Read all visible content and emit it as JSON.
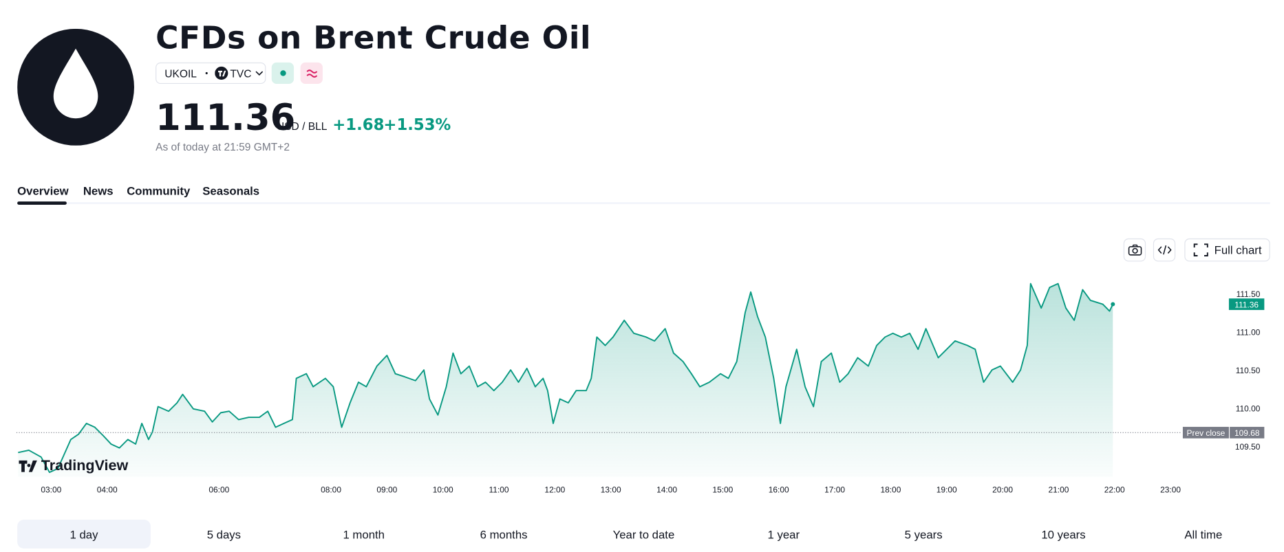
{
  "header": {
    "title": "CFDs on Brent Crude Oil",
    "symbol": "UKOIL",
    "exchange": "TVC",
    "price": "111.36",
    "unit": "USD / BLL",
    "change": "+1.68",
    "change_pct": "+1.53%",
    "as_of": "As of today at 21:59 GMT+2"
  },
  "tabs": [
    "Overview",
    "News",
    "Community",
    "Seasonals"
  ],
  "toolbar": {
    "full_chart": "Full chart"
  },
  "watermark": "TradingView",
  "ranges": [
    "1 day",
    "5 days",
    "1 month",
    "6 months",
    "Year to date",
    "1 year",
    "5 years",
    "10 years",
    "All time"
  ],
  "chart_data": {
    "type": "line",
    "color": "#089981",
    "x": [
      2.41,
      2.6,
      2.82,
      2.97,
      3.12,
      3.35,
      3.49,
      3.63,
      3.78,
      3.93,
      4.07,
      4.22,
      4.37,
      4.51,
      4.62,
      4.74,
      4.81,
      4.91,
      5.1,
      5.25,
      5.35,
      5.54,
      5.74,
      5.88,
      6.03,
      6.18,
      6.35,
      6.53,
      6.72,
      6.87,
      7.01,
      7.16,
      7.31,
      7.38,
      7.56,
      7.68,
      7.9,
      8.04,
      8.19,
      8.34,
      8.49,
      8.63,
      8.82,
      9.0,
      9.15,
      9.32,
      9.51,
      9.66,
      9.76,
      9.91,
      10.06,
      10.18,
      10.32,
      10.47,
      10.62,
      10.76,
      10.91,
      11.06,
      11.21,
      11.35,
      11.5,
      11.65,
      11.79,
      11.87,
      11.97,
      12.09,
      12.24,
      12.38,
      12.56,
      12.65,
      12.75,
      12.9,
      13.04,
      13.24,
      13.41,
      13.63,
      13.78,
      13.97,
      14.12,
      14.29,
      14.44,
      14.59,
      14.76,
      14.96,
      15.1,
      15.25,
      15.4,
      15.5,
      15.62,
      15.76,
      15.91,
      16.03,
      16.13,
      16.32,
      16.47,
      16.62,
      16.76,
      16.94,
      17.09,
      17.24,
      17.41,
      17.6,
      17.75,
      17.9,
      18.04,
      18.19,
      18.34,
      18.49,
      18.63,
      18.85,
      19.0,
      19.15,
      19.37,
      19.51,
      19.66,
      19.81,
      19.96,
      20.18,
      20.32,
      20.44,
      20.5,
      20.69,
      20.84,
      20.99,
      21.13,
      21.28,
      21.43,
      21.57,
      21.79,
      21.91,
      21.97
    ],
    "values": [
      109.42,
      109.45,
      109.36,
      109.16,
      109.21,
      109.59,
      109.66,
      109.8,
      109.75,
      109.64,
      109.53,
      109.48,
      109.59,
      109.53,
      109.8,
      109.59,
      109.69,
      110.02,
      109.96,
      110.07,
      110.18,
      109.99,
      109.96,
      109.82,
      109.94,
      109.96,
      109.85,
      109.88,
      109.88,
      109.96,
      109.75,
      109.8,
      109.85,
      110.39,
      110.45,
      110.28,
      110.39,
      110.28,
      109.75,
      110.07,
      110.34,
      110.28,
      110.55,
      110.69,
      110.45,
      110.41,
      110.36,
      110.5,
      110.12,
      109.91,
      110.28,
      110.72,
      110.45,
      110.55,
      110.28,
      110.34,
      110.23,
      110.34,
      110.5,
      110.34,
      110.52,
      110.28,
      110.39,
      110.23,
      109.8,
      110.12,
      110.07,
      110.23,
      110.23,
      110.39,
      110.93,
      110.82,
      110.93,
      111.15,
      110.98,
      110.93,
      110.88,
      111.04,
      110.72,
      110.61,
      110.45,
      110.28,
      110.34,
      110.45,
      110.39,
      110.61,
      111.25,
      111.52,
      111.2,
      110.93,
      110.39,
      109.8,
      110.28,
      110.77,
      110.28,
      110.02,
      110.61,
      110.72,
      110.34,
      110.45,
      110.66,
      110.55,
      110.82,
      110.93,
      110.98,
      110.93,
      110.98,
      110.77,
      111.04,
      110.66,
      110.77,
      110.88,
      110.82,
      110.77,
      110.34,
      110.5,
      110.55,
      110.34,
      110.5,
      110.82,
      111.63,
      111.31,
      111.58,
      111.63,
      111.31,
      111.15,
      111.55,
      111.41,
      111.36,
      111.27,
      111.36
    ],
    "xlim": [
      2.38,
      23.19
    ],
    "xticks": [
      {
        "value": 3,
        "label": "03:00"
      },
      {
        "value": 4,
        "label": "04:00"
      },
      {
        "value": 6,
        "label": "06:00"
      },
      {
        "value": 8,
        "label": "08:00"
      },
      {
        "value": 9,
        "label": "09:00"
      },
      {
        "value": 10,
        "label": "10:00"
      },
      {
        "value": 11,
        "label": "11:00"
      },
      {
        "value": 12,
        "label": "12:00"
      },
      {
        "value": 13,
        "label": "13:00"
      },
      {
        "value": 14,
        "label": "14:00"
      },
      {
        "value": 15,
        "label": "15:00"
      },
      {
        "value": 16,
        "label": "16:00"
      },
      {
        "value": 17,
        "label": "17:00"
      },
      {
        "value": 18,
        "label": "18:00"
      },
      {
        "value": 19,
        "label": "19:00"
      },
      {
        "value": 20,
        "label": "20:00"
      },
      {
        "value": 21,
        "label": "21:00"
      },
      {
        "value": 22,
        "label": "22:00"
      },
      {
        "value": 23,
        "label": "23:00"
      }
    ],
    "ylim": [
      109.1,
      111.79
    ],
    "yticks": [
      {
        "value": 109.5,
        "label": "109.50"
      },
      {
        "value": 110,
        "label": "110.00"
      },
      {
        "value": 110.5,
        "label": "110.50"
      },
      {
        "value": 111,
        "label": "111.00"
      },
      {
        "value": 111.5,
        "label": "111.50"
      }
    ],
    "last_value": 111.36,
    "prev_close": {
      "label": "Prev close",
      "value": 109.68
    }
  }
}
